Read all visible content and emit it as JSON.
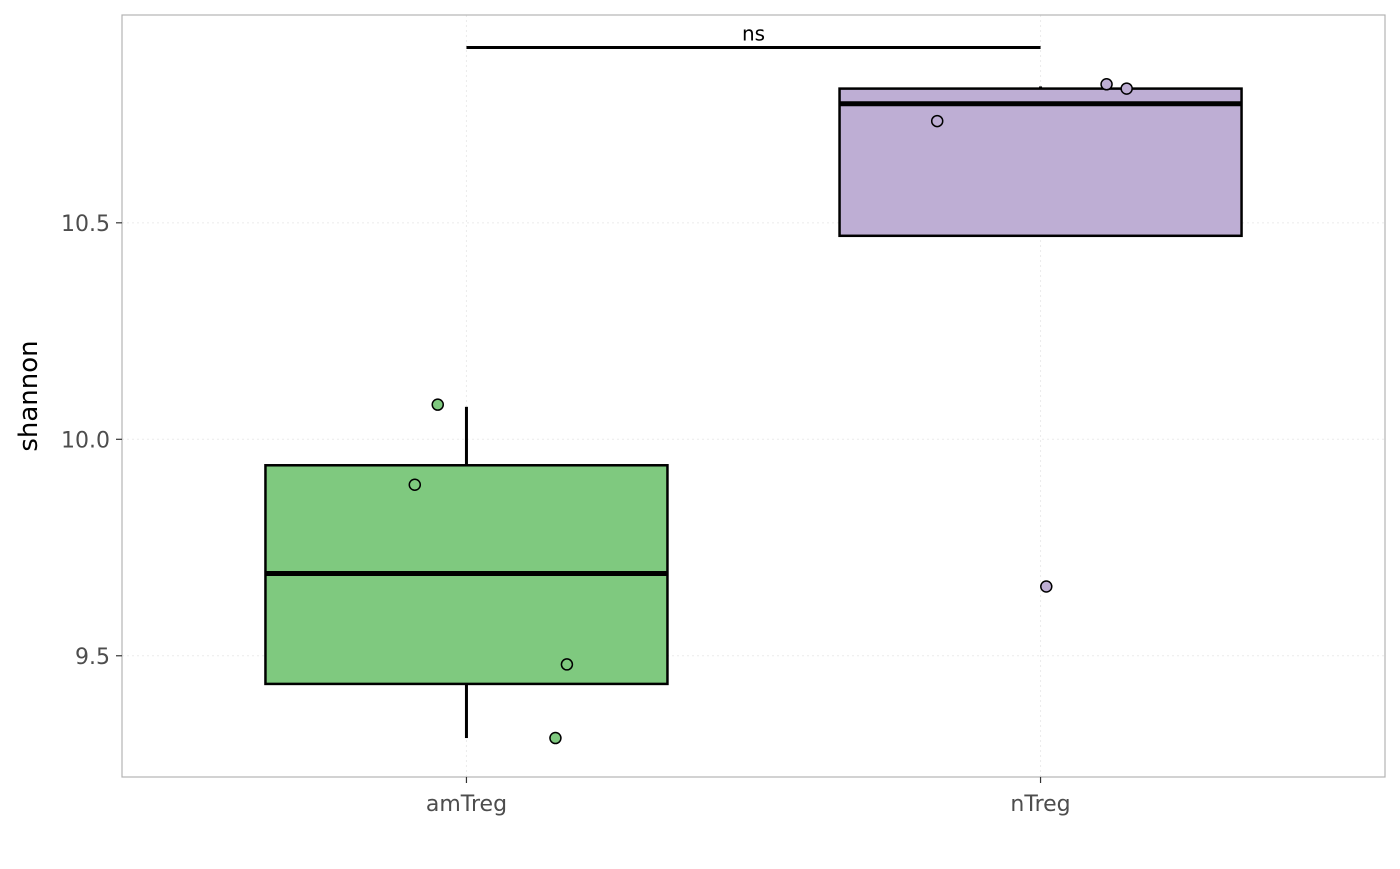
{
  "chart_data": {
    "type": "box",
    "title": "",
    "xlabel": "",
    "ylabel": "shannon",
    "ylim": [
      9.22,
      10.98
    ],
    "y_ticks": [
      9.5,
      10.0,
      10.5
    ],
    "y_tick_labels": [
      "9.5",
      "10.0",
      "10.5"
    ],
    "grid": true,
    "legend": "none",
    "categories": [
      "amTreg",
      "nTreg"
    ],
    "boxes": [
      {
        "category": "amTreg",
        "color": "#7fc97f",
        "q1": 9.435,
        "median": 9.69,
        "q3": 9.94,
        "whisker_low": 9.31,
        "whisker_high": 10.075,
        "points": [
          {
            "offset": -0.05,
            "value": 10.08
          },
          {
            "offset": -0.09,
            "value": 9.895
          },
          {
            "offset": 0.175,
            "value": 9.48
          },
          {
            "offset": 0.155,
            "value": 9.31
          }
        ]
      },
      {
        "category": "nTreg",
        "color": "#beaed4",
        "q1": 10.47,
        "median": 10.775,
        "q3": 10.81,
        "whisker_low": 10.47,
        "whisker_high": 10.815,
        "points": [
          {
            "offset": -0.18,
            "value": 10.735
          },
          {
            "offset": 0.115,
            "value": 10.82
          },
          {
            "offset": 0.15,
            "value": 10.81
          },
          {
            "offset": 0.01,
            "value": 9.66
          }
        ]
      }
    ],
    "annotations": [
      {
        "type": "significance",
        "from": "amTreg",
        "to": "nTreg",
        "y": 10.905,
        "label": "ns"
      }
    ]
  }
}
